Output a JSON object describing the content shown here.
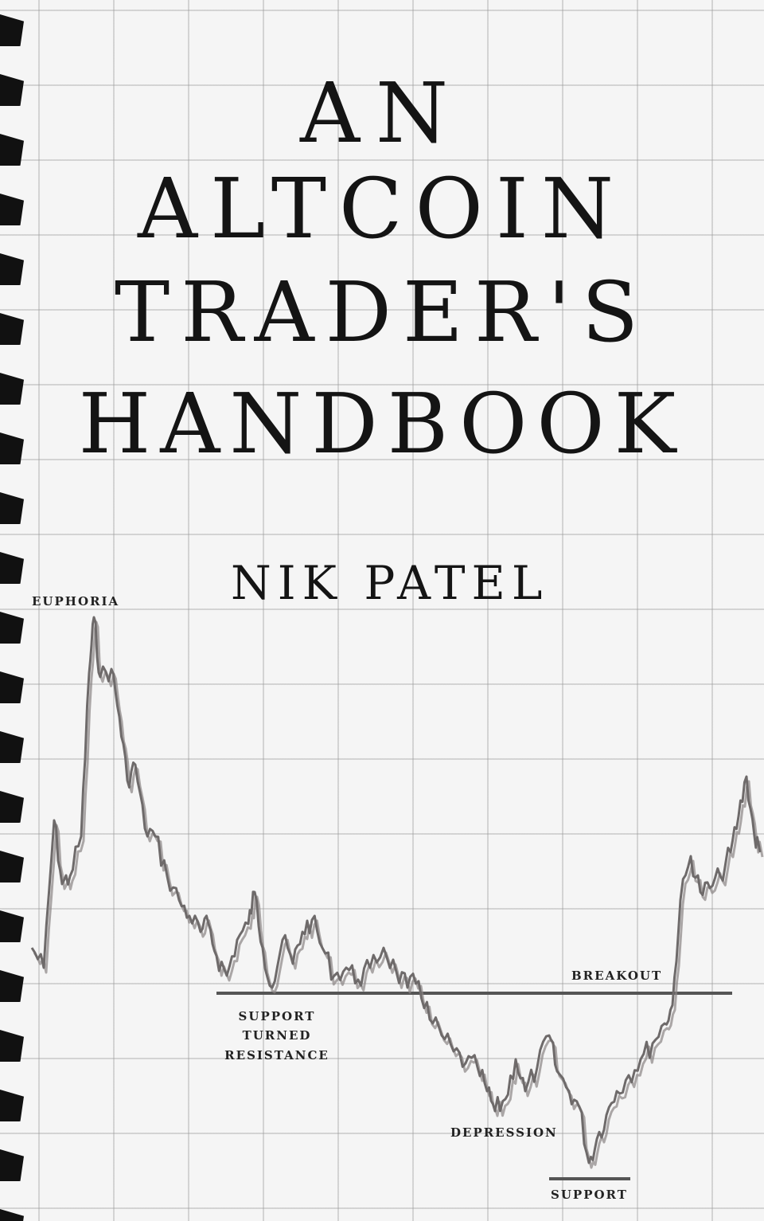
{
  "cover": {
    "title_lines": [
      "AN",
      "ALTCOIN",
      "TRADER'S",
      "HANDBOOK"
    ],
    "author": "NIK PATEL"
  },
  "chart_annotations": {
    "euphoria": "EUPHORIA",
    "support_turned_resistance": [
      "SUPPORT",
      "TURNED",
      "RESISTANCE"
    ],
    "breakout": "BREAKOUT",
    "depression": "DEPRESSION",
    "support": "SUPPORT"
  },
  "colors": {
    "price_line": "#6e6a6a",
    "level_line": "#555555",
    "spiral": "#111111"
  }
}
